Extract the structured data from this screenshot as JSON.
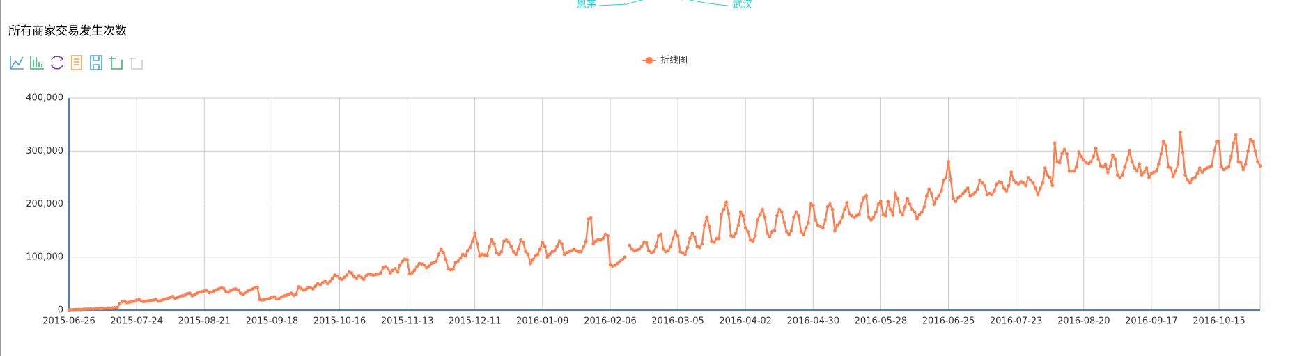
{
  "top_labels": [
    "恩茅",
    "武汉"
  ],
  "chart_data": {
    "type": "line",
    "title": "所有商家交易发生次数",
    "categories": [
      "2015-06-26",
      null,
      null,
      null,
      null,
      null,
      null,
      null,
      null,
      null,
      null,
      null,
      null,
      null,
      null,
      null,
      null,
      null,
      null,
      null,
      null,
      null,
      null,
      null,
      null,
      null,
      null,
      null,
      "2015-07-24",
      null,
      null,
      null,
      null,
      null,
      null,
      null,
      null,
      null,
      null,
      null,
      null,
      null,
      null,
      null,
      null,
      null,
      null,
      null,
      null,
      null,
      null,
      null,
      null,
      null,
      null,
      null,
      "2015-08-21",
      null,
      null,
      null,
      null,
      null,
      null,
      null,
      null,
      null,
      null,
      null,
      null,
      null,
      null,
      null,
      null,
      null,
      null,
      null,
      null,
      null,
      null,
      null,
      null,
      null,
      null,
      null,
      "2015-09-18",
      null,
      null,
      null,
      null,
      null,
      null,
      null,
      null,
      null,
      null,
      null,
      null,
      null,
      null,
      null,
      null,
      null,
      null,
      null,
      null,
      null,
      null,
      null,
      null,
      null,
      null,
      null,
      "2015-10-16",
      null,
      null,
      null,
      null,
      null,
      null,
      null,
      null,
      null,
      null,
      null,
      null,
      null,
      null,
      null,
      null,
      null,
      null,
      null,
      null,
      null,
      null,
      null,
      null,
      null,
      null,
      null,
      "2015-11-13",
      null,
      null,
      null,
      null,
      null,
      null,
      null,
      null,
      null,
      null,
      null,
      null,
      null,
      null,
      null,
      null,
      null,
      null,
      null,
      null,
      null,
      null,
      null,
      null,
      null,
      null,
      null,
      "2015-12-11",
      null,
      null,
      null,
      null,
      null,
      null,
      null,
      null,
      null,
      null,
      null,
      null,
      null,
      null,
      null,
      null,
      null,
      null,
      null,
      null,
      null,
      null,
      null,
      null,
      null,
      null,
      null,
      "2016-01-09",
      null,
      null,
      null,
      null,
      null,
      null,
      null,
      null,
      null,
      null,
      null,
      null,
      null,
      null,
      null,
      null,
      null,
      null,
      null,
      null,
      null,
      null,
      null,
      null,
      null,
      null,
      null,
      "2016-02-06",
      null,
      null,
      null,
      null,
      null,
      null,
      null,
      null,
      null,
      null,
      null,
      null,
      null,
      null,
      null,
      null,
      null,
      null,
      null,
      null,
      null,
      null,
      null,
      null,
      null,
      null,
      null,
      "2016-03-05",
      null,
      null,
      null,
      null,
      null,
      null,
      null,
      null,
      null,
      null,
      null,
      null,
      null,
      null,
      null,
      null,
      null,
      null,
      null,
      null,
      null,
      null,
      null,
      null,
      null,
      null,
      null,
      "2016-04-02",
      null,
      null,
      null,
      null,
      null,
      null,
      null,
      null,
      null,
      null,
      null,
      null,
      null,
      null,
      null,
      null,
      null,
      null,
      null,
      null,
      null,
      null,
      null,
      null,
      null,
      null,
      null,
      "2016-04-30",
      null,
      null,
      null,
      null,
      null,
      null,
      null,
      null,
      null,
      null,
      null,
      null,
      null,
      null,
      null,
      null,
      null,
      null,
      null,
      null,
      null,
      null,
      null,
      null,
      null,
      null,
      null,
      "2016-05-28",
      null,
      null,
      null,
      null,
      null,
      null,
      null,
      null,
      null,
      null,
      null,
      null,
      null,
      null,
      null,
      null,
      null,
      null,
      null,
      null,
      null,
      null,
      null,
      null,
      null,
      null,
      null,
      "2016-06-25",
      null,
      null,
      null,
      null,
      null,
      null,
      null,
      null,
      null,
      null,
      null,
      null,
      null,
      null,
      null,
      null,
      null,
      null,
      null,
      null,
      null,
      null,
      null,
      null,
      null,
      null,
      null,
      "2016-07-23",
      null,
      null,
      null,
      null,
      null,
      null,
      null,
      null,
      null,
      null,
      null,
      null,
      null,
      null,
      null,
      null,
      null,
      null,
      null,
      null,
      null,
      null,
      null,
      null,
      null,
      null,
      null,
      "2016-08-20",
      null,
      null,
      null,
      null,
      null,
      null,
      null,
      null,
      null,
      null,
      null,
      null,
      null,
      null,
      null,
      null,
      null,
      null,
      null,
      null,
      null,
      null,
      null,
      null,
      null,
      null,
      null,
      "2016-09-17",
      null,
      null,
      null,
      null,
      null,
      null,
      null,
      null,
      null,
      null,
      null,
      null,
      null,
      null,
      null,
      null,
      null,
      null,
      null,
      null,
      null,
      null,
      null,
      null,
      null,
      null,
      null,
      "2016-10-15",
      null,
      null,
      null,
      null,
      null,
      null,
      null,
      null,
      null,
      null,
      null,
      null,
      null,
      null,
      null,
      null,
      null
    ],
    "series": [
      {
        "name": "折线图",
        "color": "#ff7f50",
        "values": [
          500,
          800,
          1000,
          1200,
          1500,
          1000,
          1800,
          2000,
          2200,
          2500,
          2000,
          2800,
          3000,
          2600,
          3200,
          3500,
          4000,
          3800,
          4200,
          4500,
          5000,
          12000,
          16000,
          17000,
          14000,
          15000,
          16000,
          17000,
          19000,
          20000,
          17000,
          16000,
          17000,
          18000,
          18000,
          19000,
          20000,
          17000,
          18000,
          20000,
          21000,
          22000,
          24000,
          26000,
          22000,
          24000,
          26000,
          27000,
          28000,
          31000,
          32000,
          27000,
          29000,
          32000,
          34000,
          35000,
          36000,
          37000,
          33000,
          34000,
          36000,
          38000,
          40000,
          42000,
          41000,
          35000,
          34000,
          37000,
          39000,
          40000,
          38000,
          32000,
          30000,
          33000,
          36000,
          38000,
          40000,
          42000,
          43000,
          20000,
          19000,
          20000,
          21000,
          22000,
          24000,
          25000,
          21000,
          22000,
          25000,
          27000,
          28000,
          30000,
          32000,
          28000,
          30000,
          44000,
          41000,
          38000,
          39000,
          42000,
          43000,
          40000,
          45000,
          50000,
          48000,
          52000,
          55000,
          50000,
          54000,
          60000,
          66000,
          64000,
          60000,
          58000,
          62000,
          66000,
          72000,
          70000,
          63000,
          60000,
          65000,
          62000,
          58000,
          65000,
          68000,
          67000,
          66000,
          67000,
          68000,
          70000,
          80000,
          82000,
          78000,
          70000,
          75000,
          78000,
          72000,
          85000,
          92000,
          96000,
          95000,
          68000,
          70000,
          75000,
          82000,
          88000,
          87000,
          85000,
          80000,
          83000,
          88000,
          90000,
          92000,
          105000,
          115000,
          108000,
          95000,
          78000,
          76000,
          77000,
          90000,
          92000,
          98000,
          105000,
          102000,
          112000,
          118000,
          130000,
          145000,
          125000,
          102000,
          105000,
          104000,
          103000,
          120000,
          133000,
          125000,
          108000,
          105000,
          110000,
          130000,
          132000,
          128000,
          120000,
          110000,
          105000,
          115000,
          132000,
          128000,
          110000,
          105000,
          88000,
          95000,
          102000,
          105000,
          115000,
          128000,
          120000,
          100000,
          105000,
          110000,
          112000,
          120000,
          130000,
          125000,
          105000,
          108000,
          110000,
          112000,
          115000,
          112000,
          110000,
          110000,
          120000,
          130000,
          172000,
          174000,
          125000,
          130000,
          133000,
          132000,
          135000,
          143000,
          140000,
          86000,
          83000,
          85000,
          88000,
          92000,
          95000,
          100000,
          null,
          122000,
          115000,
          112000,
          113000,
          115000,
          120000,
          128000,
          127000,
          112000,
          108000,
          110000,
          120000,
          140000,
          143000,
          115000,
          110000,
          112000,
          120000,
          135000,
          148000,
          140000,
          110000,
          108000,
          105000,
          118000,
          135000,
          145000,
          138000,
          120000,
          118000,
          125000,
          160000,
          175000,
          158000,
          130000,
          128000,
          135000,
          135000,
          180000,
          190000,
          203000,
          182000,
          140000,
          138000,
          145000,
          160000,
          185000,
          178000,
          155000,
          148000,
          132000,
          130000,
          140000,
          170000,
          180000,
          190000,
          175000,
          145000,
          138000,
          148000,
          150000,
          178000,
          190000,
          185000,
          165000,
          148000,
          142000,
          150000,
          175000,
          185000,
          178000,
          148000,
          142000,
          155000,
          165000,
          200000,
          198000,
          170000,
          160000,
          158000,
          155000,
          170000,
          195000,
          200000,
          190000,
          150000,
          160000,
          165000,
          175000,
          190000,
          202000,
          182000,
          178000,
          175000,
          178000,
          180000,
          200000,
          212000,
          216000,
          175000,
          170000,
          175000,
          185000,
          200000,
          205000,
          180000,
          178000,
          205000,
          190000,
          180000,
          220000,
          210000,
          185000,
          180000,
          195000,
          210000,
          200000,
          190000,
          185000,
          172000,
          180000,
          185000,
          195000,
          215000,
          228000,
          220000,
          200000,
          210000,
          215000,
          225000,
          245000,
          250000,
          280000,
          245000,
          210000,
          205000,
          212000,
          215000,
          220000,
          225000,
          230000,
          215000,
          218000,
          222000,
          228000,
          245000,
          240000,
          235000,
          218000,
          220000,
          218000,
          225000,
          238000,
          242000,
          240000,
          230000,
          225000,
          235000,
          260000,
          245000,
          240000,
          238000,
          242000,
          240000,
          235000,
          250000,
          245000,
          240000,
          230000,
          218000,
          230000,
          240000,
          268000,
          255000,
          250000,
          235000,
          315000,
          280000,
          278000,
          295000,
          303000,
          295000,
          262000,
          262000,
          262000,
          270000,
          298000,
          290000,
          283000,
          278000,
          276000,
          280000,
          290000,
          305000,
          285000,
          272000,
          270000,
          275000,
          260000,
          272000,
          292000,
          285000,
          255000,
          250000,
          255000,
          270000,
          285000,
          300000,
          280000,
          268000,
          262000,
          275000,
          255000,
          260000,
          268000,
          250000,
          258000,
          260000,
          262000,
          275000,
          295000,
          318000,
          310000,
          270000,
          268000,
          252000,
          262000,
          275000,
          335000,
          298000,
          255000,
          245000,
          240000,
          248000,
          250000,
          258000,
          268000,
          260000,
          265000,
          268000,
          270000,
          272000,
          300000,
          318000,
          318000,
          270000,
          265000,
          268000,
          270000,
          290000,
          315000,
          330000,
          280000,
          278000,
          265000,
          275000,
          300000,
          322000,
          318000,
          300000,
          280000,
          272000
        ]
      }
    ],
    "ylim": [
      0,
      400000
    ],
    "yticks": [
      0,
      {
        "value": 100000,
        "label": "100,000"
      },
      {
        "value": 200000,
        "label": "200,000"
      },
      {
        "value": 300000,
        "label": "300,000"
      },
      {
        "value": 400000,
        "label": "400,000"
      }
    ],
    "grid": true
  }
}
